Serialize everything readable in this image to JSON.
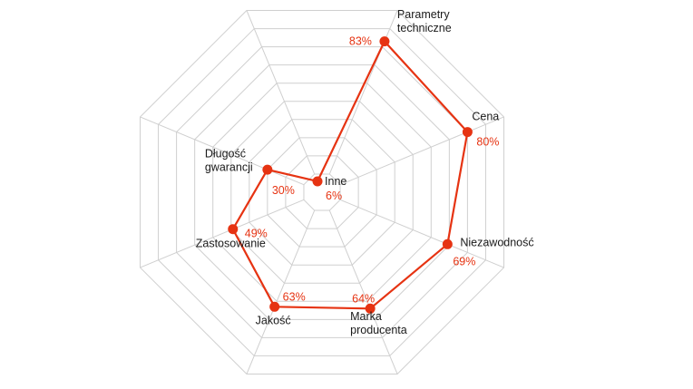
{
  "chart_data": {
    "type": "radar",
    "max": 100,
    "rings": 10,
    "axes": [
      {
        "label_lines": [
          "Parametry",
          "techniczne"
        ],
        "value": 83,
        "value_text": "83%"
      },
      {
        "label_lines": [
          "Cena"
        ],
        "value": 80,
        "value_text": "80%"
      },
      {
        "label_lines": [
          "Niezawodność"
        ],
        "value": 69,
        "value_text": "69%"
      },
      {
        "label_lines": [
          "Marka",
          "producenta"
        ],
        "value": 64,
        "value_text": "64%"
      },
      {
        "label_lines": [
          "Jakość"
        ],
        "value": 63,
        "value_text": "63%"
      },
      {
        "label_lines": [
          "Zastosowanie"
        ],
        "value": 49,
        "value_text": "49%"
      },
      {
        "label_lines": [
          "Długość",
          "gwarancji"
        ],
        "value": 30,
        "value_text": "30%"
      },
      {
        "label_lines": [
          "Inne"
        ],
        "value": 6,
        "value_text": "6%"
      }
    ],
    "colors": {
      "series": "#e63312",
      "grid": "#cfcfcf",
      "text": "#1a1a1a"
    }
  }
}
